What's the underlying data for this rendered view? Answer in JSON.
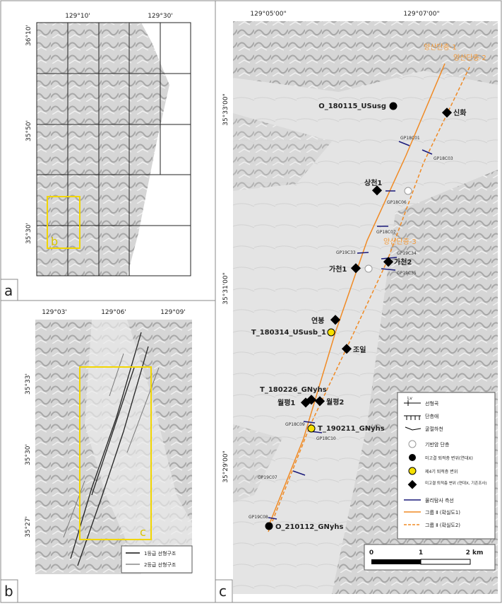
{
  "panel_a": {
    "letter": "a",
    "box_label": "b",
    "lon_labels": [
      "129°10'",
      "129°30'"
    ],
    "lat_labels": [
      "36°10'",
      "35°50'",
      "35°30'"
    ]
  },
  "panel_b": {
    "letter": "b",
    "box_label": "c",
    "lon_labels": [
      "129°03'",
      "129°06'",
      "129°09'"
    ],
    "lat_labels": [
      "35°33'",
      "35°30'",
      "35°27'"
    ],
    "legend": [
      "1등급 선형구조",
      "2등급 선형구조"
    ]
  },
  "panel_c": {
    "letter": "c",
    "lon_labels": [
      "129°05'00\"",
      "129°07'00\""
    ],
    "lat_labels": [
      "35°33'00\"",
      "35°31'00\"",
      "35°29'00\""
    ],
    "fault_labels": [
      "양산단층-1",
      "양산단층-2",
      "양산단층-3"
    ],
    "sites": [
      "O_180115_USusg",
      "신화",
      "상천1",
      "가천1",
      "가천2",
      "연봉",
      "T_180314_USusb_1",
      "조일",
      "T_180226_GNyhs",
      "월평1",
      "월평2",
      "T_190211_GNyhs",
      "O_210112_GNyhs"
    ],
    "survey_lines": [
      "GP18C01",
      "GP18C03",
      "GP18C06",
      "GP18C07",
      "GP19C33",
      "GP19C34",
      "GP19C35",
      "GP18C09",
      "GP18C10",
      "GP19C07",
      "GP19C08"
    ],
    "legend": {
      "lv": "Lv",
      "items": [
        "선형곡",
        "단층애",
        "굴절하천",
        "기반암 단층",
        "미고결 퇴적층 변위(연대X)",
        "제4기 퇴적층 변위",
        "미고결 퇴적층 변위 (연대X, 기존조사)",
        "물리탐사 측선",
        "그룹 Ⅱ (확실도1)",
        "그룹 Ⅱ (확실도2)"
      ]
    },
    "scale": [
      "0",
      "1",
      "2 km"
    ]
  }
}
